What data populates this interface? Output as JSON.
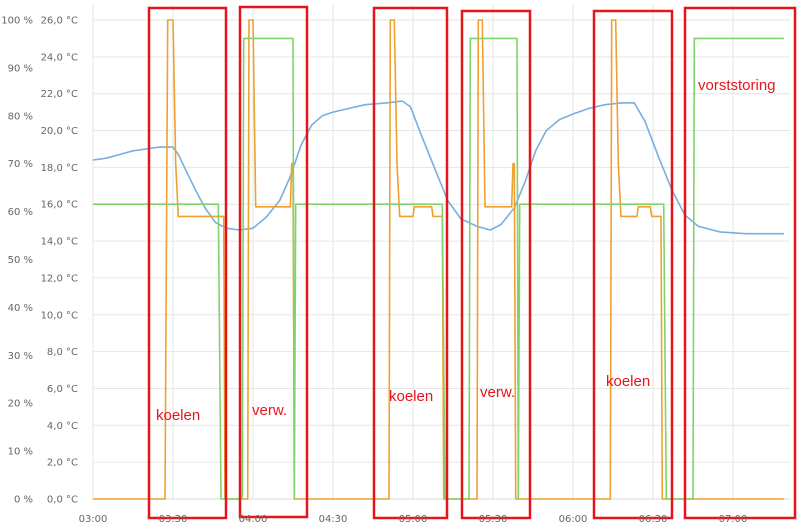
{
  "chart_data": {
    "type": "line",
    "title": "",
    "xlabel": "",
    "ylabel": "",
    "grid": true,
    "x_ticks": [
      "03:00",
      "03:30",
      "04:00",
      "04:30",
      "05:00",
      "05:30",
      "06:00",
      "06:30",
      "07:00"
    ],
    "y_left_ticks": [
      "0 %",
      "10 %",
      "20 %",
      "30 %",
      "40 %",
      "50 %",
      "60 %",
      "70 %",
      "80 %",
      "90 %",
      "100 %"
    ],
    "y_right_ticks": [
      "0,0 °C",
      "2,0 °C",
      "4,0 °C",
      "6,0 °C",
      "8,0 °C",
      "10,0 °C",
      "12,0 °C",
      "14,0 °C",
      "16,0 °C",
      "18,0 °C",
      "20,0 °C",
      "22,0 °C",
      "24,0 °C",
      "26,0 °C"
    ],
    "y_temp_range": [
      0,
      26
    ],
    "x_range": [
      "03:00",
      "07:20"
    ],
    "series": [
      {
        "axis": "temp",
        "color": "#7aaee0",
        "points": [
          [
            "03:00",
            18.4
          ],
          [
            "03:05",
            18.5
          ],
          [
            "03:10",
            18.7
          ],
          [
            "03:15",
            18.9
          ],
          [
            "03:20",
            19.0
          ],
          [
            "03:25",
            19.1
          ],
          [
            "03:30",
            19.1
          ],
          [
            "03:32",
            18.7
          ],
          [
            "03:35",
            17.8
          ],
          [
            "03:38",
            16.9
          ],
          [
            "03:42",
            15.8
          ],
          [
            "03:46",
            15.0
          ],
          [
            "03:50",
            14.7
          ],
          [
            "03:55",
            14.6
          ],
          [
            "04:00",
            14.7
          ],
          [
            "04:05",
            15.3
          ],
          [
            "04:10",
            16.2
          ],
          [
            "04:14",
            17.5
          ],
          [
            "04:18",
            19.2
          ],
          [
            "04:22",
            20.3
          ],
          [
            "04:26",
            20.8
          ],
          [
            "04:30",
            21.0
          ],
          [
            "04:36",
            21.2
          ],
          [
            "04:42",
            21.4
          ],
          [
            "04:50",
            21.5
          ],
          [
            "04:56",
            21.6
          ],
          [
            "04:59",
            21.3
          ],
          [
            "05:03",
            19.8
          ],
          [
            "05:08",
            18.0
          ],
          [
            "05:13",
            16.2
          ],
          [
            "05:18",
            15.2
          ],
          [
            "05:24",
            14.8
          ],
          [
            "05:29",
            14.6
          ],
          [
            "05:33",
            14.9
          ],
          [
            "05:38",
            15.8
          ],
          [
            "05:42",
            17.2
          ],
          [
            "05:46",
            18.9
          ],
          [
            "05:50",
            20.0
          ],
          [
            "05:55",
            20.6
          ],
          [
            "06:00",
            20.9
          ],
          [
            "06:06",
            21.2
          ],
          [
            "06:12",
            21.4
          ],
          [
            "06:18",
            21.5
          ],
          [
            "06:23",
            21.5
          ],
          [
            "06:27",
            20.5
          ],
          [
            "06:32",
            18.6
          ],
          [
            "06:37",
            16.8
          ],
          [
            "06:42",
            15.4
          ],
          [
            "06:47",
            14.8
          ],
          [
            "06:55",
            14.5
          ],
          [
            "07:05",
            14.4
          ],
          [
            "07:19",
            14.4
          ]
        ]
      },
      {
        "axis": "pct",
        "color": "#f0a030",
        "points": [
          [
            "03:00",
            0
          ],
          [
            "03:27",
            0
          ],
          [
            "03:28",
            100
          ],
          [
            "03:30",
            100
          ],
          [
            "03:31",
            70
          ],
          [
            "03:32",
            59
          ],
          [
            "03:49",
            59
          ],
          [
            "03:49.5",
            0
          ],
          [
            "03:58",
            0
          ],
          [
            "03:58.5",
            100
          ],
          [
            "04:00",
            100
          ],
          [
            "04:01",
            61
          ],
          [
            "04:14",
            61
          ],
          [
            "04:14.5",
            70
          ],
          [
            "04:15",
            70
          ],
          [
            "04:15.5",
            0
          ],
          [
            "04:51",
            0
          ],
          [
            "04:51.5",
            100
          ],
          [
            "04:53",
            100
          ],
          [
            "04:54",
            70
          ],
          [
            "04:55",
            59
          ],
          [
            "05:00",
            59
          ],
          [
            "05:00.5",
            61
          ],
          [
            "05:07",
            61
          ],
          [
            "05:07.5",
            59
          ],
          [
            "05:11",
            59
          ],
          [
            "05:11.5",
            0
          ],
          [
            "05:24",
            0
          ],
          [
            "05:24.5",
            100
          ],
          [
            "05:26",
            100
          ],
          [
            "05:27",
            61
          ],
          [
            "05:37",
            61
          ],
          [
            "05:37.5",
            70
          ],
          [
            "05:38",
            70
          ],
          [
            "05:38.5",
            0
          ],
          [
            "06:14",
            0
          ],
          [
            "06:14.5",
            100
          ],
          [
            "06:16",
            100
          ],
          [
            "06:17",
            70
          ],
          [
            "06:18",
            59
          ],
          [
            "06:24",
            59
          ],
          [
            "06:24.5",
            61
          ],
          [
            "06:29",
            61
          ],
          [
            "06:29.5",
            59
          ],
          [
            "06:33",
            59
          ],
          [
            "06:33.5",
            0
          ],
          [
            "07:19",
            0
          ]
        ]
      },
      {
        "axis": "temp",
        "color": "#7ed46a",
        "points": [
          [
            "03:00",
            16
          ],
          [
            "03:47",
            16
          ],
          [
            "03:48",
            0
          ],
          [
            "03:56",
            0
          ],
          [
            "03:56.5",
            25
          ],
          [
            "04:15",
            25
          ],
          [
            "04:15.5",
            0
          ],
          [
            "04:16",
            16
          ],
          [
            "05:11",
            16
          ],
          [
            "05:12",
            0
          ],
          [
            "05:21",
            0
          ],
          [
            "05:21.5",
            25
          ],
          [
            "05:39",
            25
          ],
          [
            "05:39.5",
            0
          ],
          [
            "05:40",
            16
          ],
          [
            "06:34",
            16
          ],
          [
            "06:35",
            0
          ],
          [
            "06:45",
            0
          ],
          [
            "06:45.5",
            25
          ],
          [
            "07:19",
            25
          ]
        ]
      }
    ],
    "annotations": [
      {
        "label": "koelen",
        "color": "#e8141b"
      },
      {
        "label": "verw.",
        "color": "#e8141b"
      },
      {
        "label": "koelen",
        "color": "#e8141b"
      },
      {
        "label": "verw.",
        "color": "#e8141b"
      },
      {
        "label": "koelen",
        "color": "#e8141b"
      },
      {
        "label": "vorststoring",
        "color": "#e8141b"
      }
    ]
  }
}
